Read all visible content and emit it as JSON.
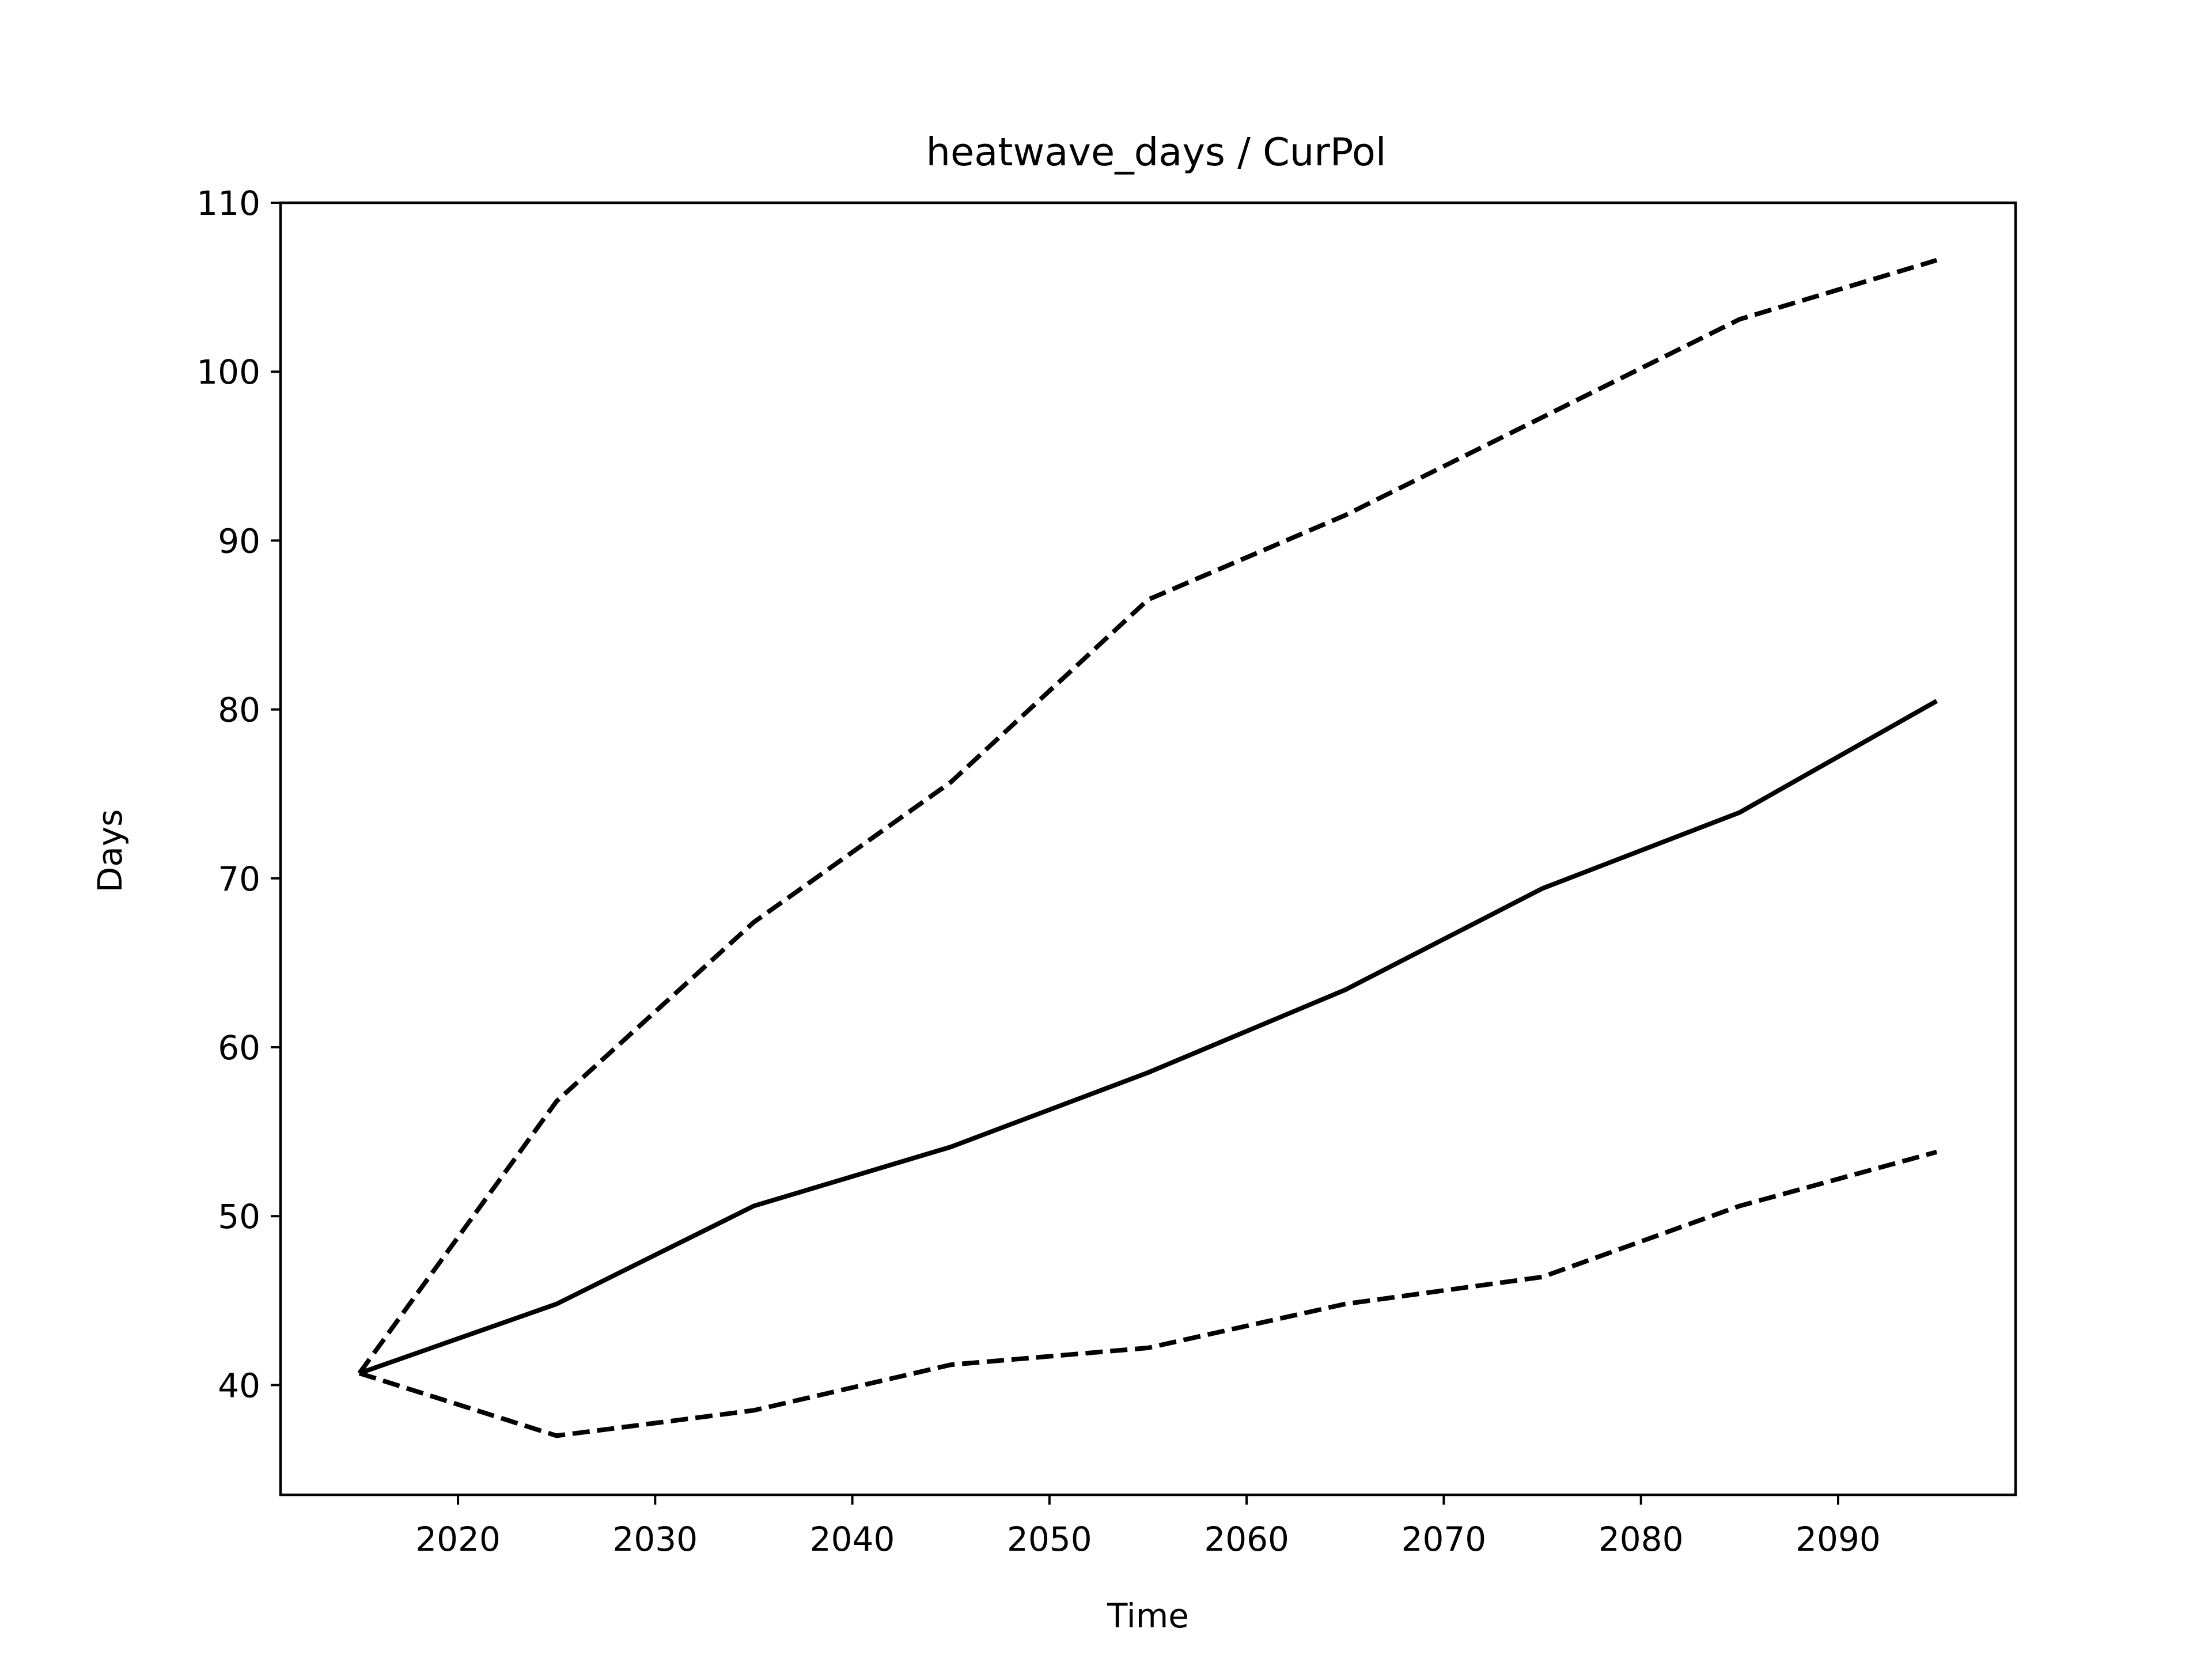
{
  "chart_data": {
    "type": "line",
    "title": "heatwave_days / CurPol",
    "xlabel": "Time",
    "ylabel": "Days",
    "xlim": [
      2011,
      2099
    ],
    "ylim": [
      33.5,
      110
    ],
    "xticks": [
      2020,
      2030,
      2040,
      2050,
      2060,
      2070,
      2080,
      2090
    ],
    "yticks": [
      40,
      50,
      60,
      70,
      80,
      90,
      100,
      110
    ],
    "grid": false,
    "legend": "none",
    "x": [
      2015,
      2025,
      2035,
      2045,
      2055,
      2065,
      2075,
      2085,
      2095
    ],
    "series": [
      {
        "style": "dashed",
        "color": "#000000",
        "values": [
          40.7,
          56.8,
          67.4,
          75.7,
          86.5,
          91.5,
          97.3,
          103.1,
          106.6
        ]
      },
      {
        "style": "solid",
        "color": "#000000",
        "values": [
          40.7,
          44.8,
          50.6,
          54.1,
          58.5,
          63.4,
          69.4,
          73.9,
          80.5
        ]
      },
      {
        "style": "dashed",
        "color": "#000000",
        "values": [
          40.7,
          37.0,
          38.5,
          41.2,
          42.2,
          44.8,
          46.4,
          50.6,
          53.8
        ]
      }
    ]
  }
}
